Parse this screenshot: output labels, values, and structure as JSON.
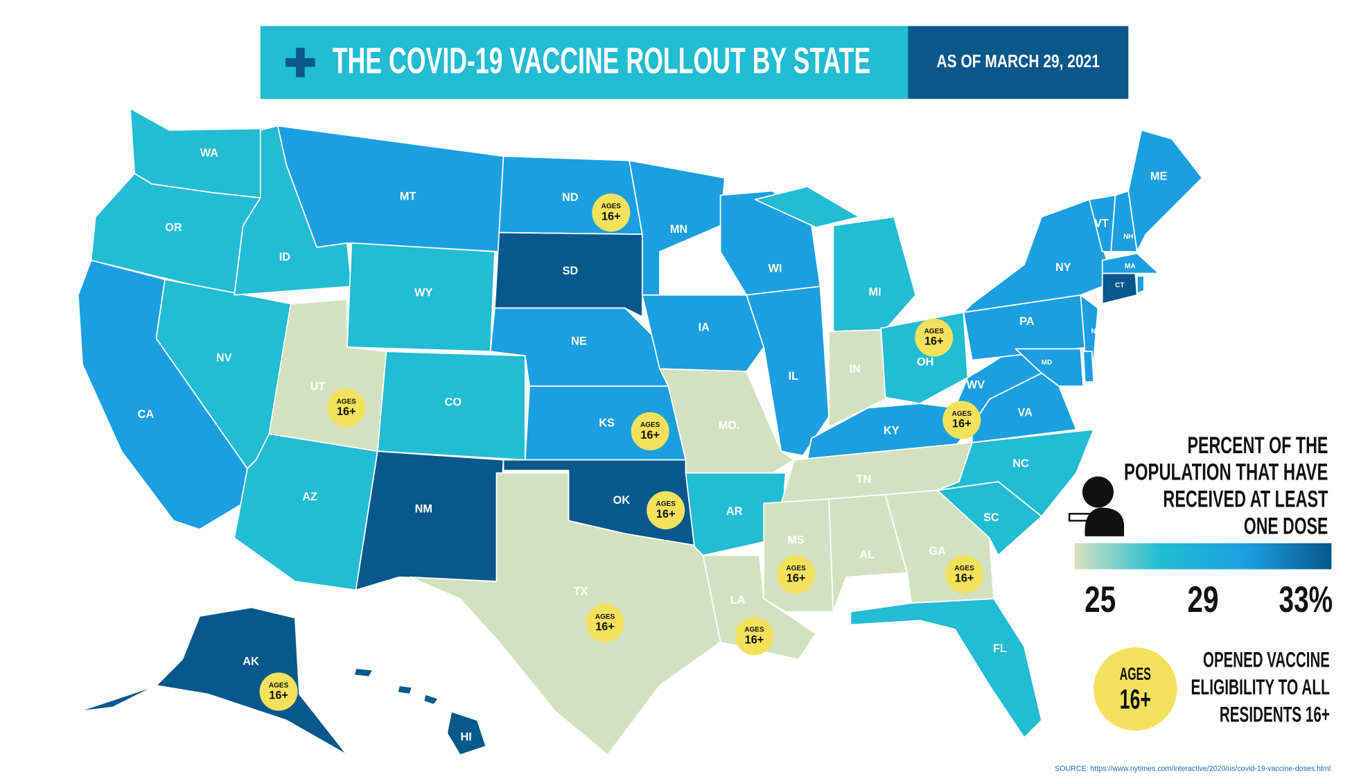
{
  "header": {
    "title": "THE COVID-19 VACCINE ROLLOUT BY STATE",
    "date": "AS OF MARCH 29, 2021"
  },
  "badge": {
    "line1": "AGES",
    "line2": "16+",
    "color": "#f3e15b"
  },
  "states": [
    {
      "label": "WA",
      "color": "#22bcd3",
      "eligible16": false
    },
    {
      "label": "OR",
      "color": "#22bcd3",
      "eligible16": false
    },
    {
      "label": "CA",
      "color": "#1b9fe0",
      "eligible16": false
    },
    {
      "label": "NV",
      "color": "#22bcd3",
      "eligible16": false
    },
    {
      "label": "ID",
      "color": "#22bcd3",
      "eligible16": false
    },
    {
      "label": "MT",
      "color": "#1b9fe0",
      "eligible16": false
    },
    {
      "label": "WY",
      "color": "#22bcd3",
      "eligible16": false
    },
    {
      "label": "UT",
      "color": "#d4e1c0",
      "eligible16": true
    },
    {
      "label": "CO",
      "color": "#22bcd3",
      "eligible16": false
    },
    {
      "label": "AZ",
      "color": "#22bcd3",
      "eligible16": false
    },
    {
      "label": "NM",
      "color": "#07588d",
      "eligible16": false
    },
    {
      "label": "ND",
      "color": "#1b9fe0",
      "eligible16": true
    },
    {
      "label": "SD",
      "color": "#07588d",
      "eligible16": false
    },
    {
      "label": "NE",
      "color": "#1b9fe0",
      "eligible16": false
    },
    {
      "label": "KS",
      "color": "#1b9fe0",
      "eligible16": true
    },
    {
      "label": "OK",
      "color": "#07588d",
      "eligible16": true
    },
    {
      "label": "TX",
      "color": "#d4e1c0",
      "eligible16": true
    },
    {
      "label": "MN",
      "color": "#1b9fe0",
      "eligible16": false
    },
    {
      "label": "IA",
      "color": "#1b9fe0",
      "eligible16": false
    },
    {
      "label": "MO.",
      "color": "#d4e1c0",
      "eligible16": false
    },
    {
      "label": "AR",
      "color": "#22bcd3",
      "eligible16": false
    },
    {
      "label": "LA",
      "color": "#d4e1c0",
      "eligible16": true
    },
    {
      "label": "WI",
      "color": "#1b9fe0",
      "eligible16": false
    },
    {
      "label": "IL",
      "color": "#1b9fe0",
      "eligible16": false
    },
    {
      "label": "MI",
      "color": "#22bcd3",
      "eligible16": false
    },
    {
      "label": "IN",
      "color": "#d4e1c0",
      "eligible16": false
    },
    {
      "label": "OH",
      "color": "#22bcd3",
      "eligible16": true
    },
    {
      "label": "KY",
      "color": "#1b9fe0",
      "eligible16": false
    },
    {
      "label": "TN",
      "color": "#d4e1c0",
      "eligible16": false
    },
    {
      "label": "MS",
      "color": "#d4e1c0",
      "eligible16": true
    },
    {
      "label": "AL",
      "color": "#d4e1c0",
      "eligible16": false
    },
    {
      "label": "GA",
      "color": "#d4e1c0",
      "eligible16": true
    },
    {
      "label": "FL",
      "color": "#22bcd3",
      "eligible16": false
    },
    {
      "label": "SC",
      "color": "#22bcd3",
      "eligible16": false
    },
    {
      "label": "NC",
      "color": "#22bcd3",
      "eligible16": false
    },
    {
      "label": "VA",
      "color": "#1b9fe0",
      "eligible16": false
    },
    {
      "label": "WV",
      "color": "#1b9fe0",
      "eligible16": true
    },
    {
      "label": "PA",
      "color": "#1b9fe0",
      "eligible16": false
    },
    {
      "label": "NY",
      "color": "#1b9fe0",
      "eligible16": false
    },
    {
      "label": "NJ",
      "color": "#1b9fe0",
      "eligible16": false
    },
    {
      "label": "MD",
      "color": "#1b9fe0",
      "eligible16": false
    },
    {
      "label": null,
      "color": "#1b9fe0",
      "eligible16": false
    },
    {
      "label": "VT",
      "color": "#1b9fe0",
      "eligible16": false
    },
    {
      "label": "NH",
      "color": "#1b9fe0",
      "eligible16": false
    },
    {
      "label": "ME",
      "color": "#1b9fe0",
      "eligible16": false
    },
    {
      "label": "MA",
      "color": "#1b9fe0",
      "eligible16": false
    },
    {
      "label": "CT",
      "color": "#07588d",
      "eligible16": false
    },
    {
      "label": null,
      "color": "#1b9fe0",
      "eligible16": false
    },
    {
      "label": "AK",
      "color": "#07588d",
      "eligible16": true
    },
    {
      "label": "HI",
      "color": "#07588d",
      "eligible16": false
    }
  ],
  "legend": {
    "title": [
      "PERCENT OF THE",
      "POPULATION THAT HAVE",
      "RECEIVED AT LEAST",
      "ONE DOSE"
    ],
    "colors": [
      "#d4e1c0",
      "#22bcd3",
      "#1b9fe0",
      "#07588d"
    ],
    "lim": [
      24,
      34
    ],
    "ticks": [
      25,
      29,
      {
        "value": 33,
        "label": "33%"
      }
    ],
    "eligibility": [
      "OPENED VACCINE",
      "ELIGIBILITY TO ALL",
      "RESIDENTS 16+"
    ]
  },
  "source": "SOURCE: https://www.nytimes.com/interactive/2020/us/covid-19-vaccine-doses.html"
}
